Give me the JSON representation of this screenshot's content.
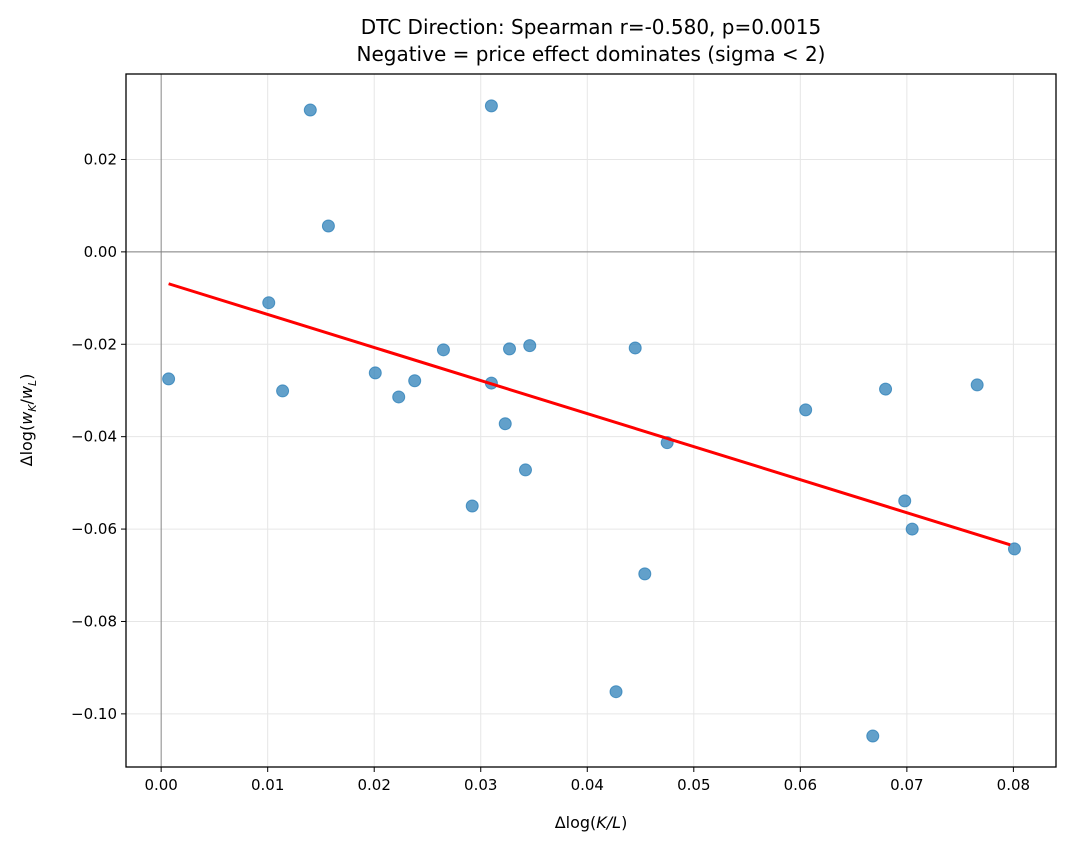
{
  "chart_data": {
    "type": "scatter",
    "title_lines": [
      "DTC Direction: Spearman r=-0.580, p=0.0015",
      "Negative = price effect dominates (sigma < 2)"
    ],
    "xlabel": {
      "prefix": "Δlog(",
      "main": "K/L",
      "suffix": ")"
    },
    "ylabel": {
      "prefix": "Δlog(",
      "w1": "w",
      "s1": "K",
      "slash": "/",
      "w2": "w",
      "s2": "L",
      "suffix": ")"
    },
    "xlim": [
      -0.0033,
      0.084
    ],
    "ylim": [
      -0.1115,
      0.0385
    ],
    "xticks": [
      0.0,
      0.01,
      0.02,
      0.03,
      0.04,
      0.05,
      0.06,
      0.07,
      0.08
    ],
    "xtick_labels": [
      "0.00",
      "0.01",
      "0.02",
      "0.03",
      "0.04",
      "0.05",
      "0.06",
      "0.07",
      "0.08"
    ],
    "yticks": [
      0.02,
      0.0,
      -0.02,
      -0.04,
      -0.06,
      -0.08,
      -0.1
    ],
    "ytick_labels": [
      "0.02",
      "0.00",
      "−0.02",
      "−0.04",
      "−0.06",
      "−0.08",
      "−0.10"
    ],
    "grid": true,
    "reference_lines": {
      "x": 0,
      "y": 0
    },
    "points": [
      [
        0.0007,
        -0.0275
      ],
      [
        0.0101,
        -0.011
      ],
      [
        0.0114,
        -0.0301
      ],
      [
        0.014,
        0.0307
      ],
      [
        0.0157,
        0.0056
      ],
      [
        0.0201,
        -0.0262
      ],
      [
        0.0223,
        -0.0314
      ],
      [
        0.0238,
        -0.0279
      ],
      [
        0.0265,
        -0.0212
      ],
      [
        0.0292,
        -0.055
      ],
      [
        0.031,
        0.0316
      ],
      [
        0.031,
        -0.0284
      ],
      [
        0.0323,
        -0.0372
      ],
      [
        0.0327,
        -0.021
      ],
      [
        0.0342,
        -0.0472
      ],
      [
        0.0346,
        -0.0203
      ],
      [
        0.0427,
        -0.0952
      ],
      [
        0.0445,
        -0.0208
      ],
      [
        0.0454,
        -0.0697
      ],
      [
        0.0475,
        -0.0413
      ],
      [
        0.0605,
        -0.0342
      ],
      [
        0.0668,
        -0.1048
      ],
      [
        0.068,
        -0.0297
      ],
      [
        0.0698,
        -0.0539
      ],
      [
        0.0705,
        -0.06
      ],
      [
        0.0766,
        -0.0288
      ],
      [
        0.0801,
        -0.0643
      ]
    ],
    "trend_line": {
      "x": [
        0.0007,
        0.0797
      ],
      "y": [
        -0.0069,
        -0.0634
      ]
    },
    "colors": {
      "points": "#1f77b4",
      "trend": "#ff0000",
      "reference": "#808080",
      "grid": "#e6e6e6"
    }
  }
}
